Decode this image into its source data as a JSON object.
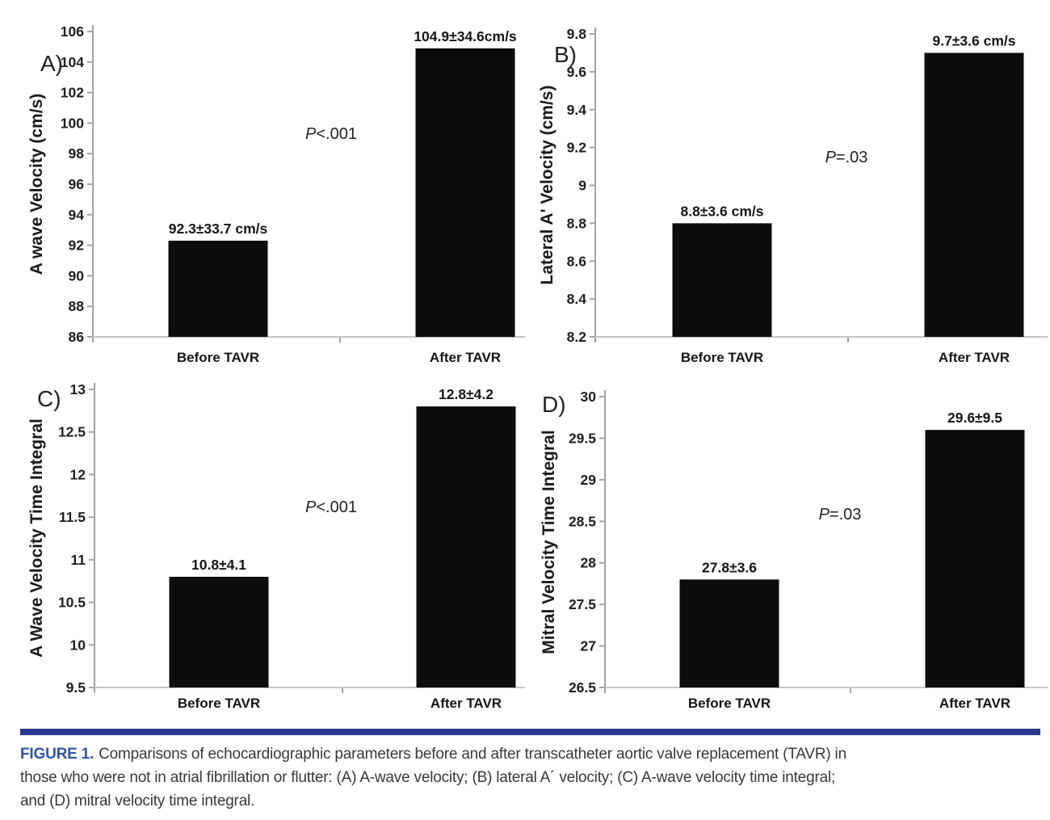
{
  "figure": {
    "caption_label": "FIGURE 1.",
    "caption_lines": [
      "Comparisons of echocardiographic parameters before and after transcatheter aortic valve replacement (TAVR) in",
      "those who were not in atrial fibrillation or flutter: (A) A-wave velocity; (B) lateral A´ velocity; (C) A-wave velocity time integral;",
      "and (D) mitral velocity time integral."
    ],
    "colors": {
      "bar": "#0d0d0d",
      "axis": "#a3a3a3",
      "baseline": "#c6c6c6",
      "tick_text": "#1f1f1f",
      "label_text": "#151515",
      "caption_rule": "#283a8e",
      "figure_label": "#2e55a4",
      "caption_text": "#383838"
    }
  },
  "chart_data": [
    {
      "id": "A",
      "panel_label": "A)",
      "type": "bar",
      "ylabel": "A wave Velocity (cm/s)",
      "categories": [
        "Before TAVR",
        "After TAVR"
      ],
      "values": [
        92.3,
        104.9
      ],
      "value_labels": [
        "92.3±33.7 cm/s",
        "104.9±34.6cm/s"
      ],
      "p_label": "P<.001",
      "ylim": [
        86,
        106
      ],
      "ytick_step": 2,
      "grid": "off",
      "legend": "none"
    },
    {
      "id": "B",
      "panel_label": "B)",
      "type": "bar",
      "ylabel": "Lateral A' Velocity (cm/s)",
      "categories": [
        "Before TAVR",
        "After TAVR"
      ],
      "values": [
        8.8,
        9.7
      ],
      "value_labels": [
        "8.8±3.6 cm/s",
        "9.7±3.6 cm/s"
      ],
      "p_label": "P=.03",
      "ylim": [
        8.2,
        9.8
      ],
      "ytick_step": 0.2,
      "grid": "off",
      "legend": "none"
    },
    {
      "id": "C",
      "panel_label": "C)",
      "type": "bar",
      "ylabel": "A Wave Velocity Time Integral",
      "categories": [
        "Before TAVR",
        "After TAVR"
      ],
      "values": [
        10.8,
        12.8
      ],
      "value_labels": [
        "10.8±4.1",
        "12.8±4.2"
      ],
      "p_label": "P<.001",
      "ylim": [
        9.5,
        13
      ],
      "ytick_step": 0.5,
      "grid": "off",
      "legend": "none"
    },
    {
      "id": "D",
      "panel_label": "D)",
      "type": "bar",
      "ylabel": "Mitral Velocity Time Integral",
      "categories": [
        "Before TAVR",
        "After TAVR"
      ],
      "values": [
        27.8,
        29.6
      ],
      "value_labels": [
        "27.8±3.6",
        "29.6±9.5"
      ],
      "p_label": "P=.03",
      "ylim": [
        26.5,
        30
      ],
      "ytick_step": 0.5,
      "grid": "off",
      "legend": "none"
    }
  ]
}
